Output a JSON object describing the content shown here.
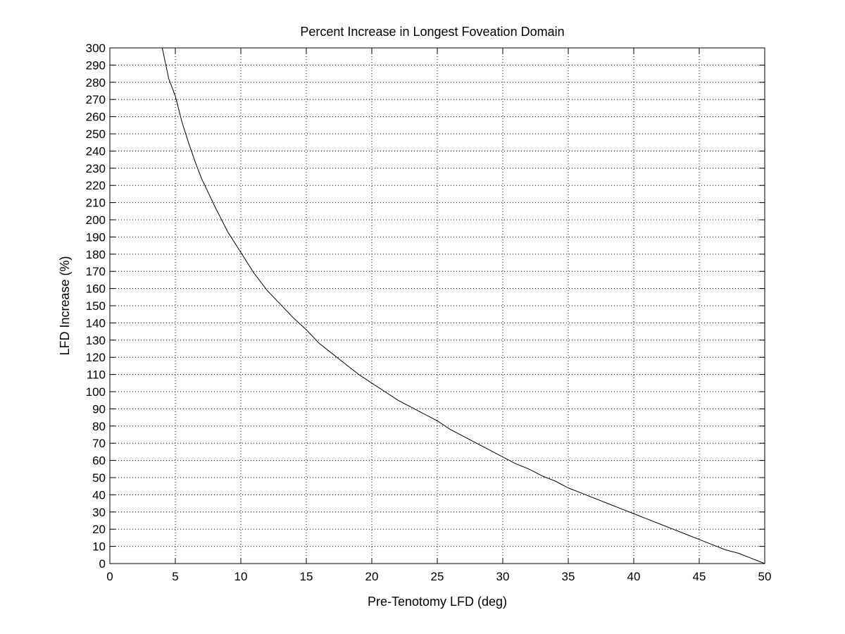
{
  "chart_data": {
    "type": "line",
    "title": "Percent Increase in Longest Foveation Domain",
    "xlabel": "Pre-Tenotomy LFD (deg)",
    "ylabel": "LFD Increase (%)",
    "xlim": [
      0,
      50
    ],
    "ylim": [
      0,
      300
    ],
    "x_ticks": [
      0,
      5,
      10,
      15,
      20,
      25,
      30,
      35,
      40,
      45,
      50
    ],
    "y_ticks": [
      0,
      10,
      20,
      30,
      40,
      50,
      60,
      70,
      80,
      90,
      100,
      110,
      120,
      130,
      140,
      150,
      160,
      170,
      180,
      190,
      200,
      210,
      220,
      230,
      240,
      250,
      260,
      270,
      280,
      290,
      300
    ],
    "grid": true,
    "series": [
      {
        "color": "#000000",
        "x": [
          4.0,
          4.5,
          5,
          5.5,
          6,
          6.5,
          7,
          8,
          9,
          10,
          11,
          12,
          13,
          14,
          15,
          16,
          17,
          18,
          19,
          20,
          21,
          22,
          23,
          24,
          25,
          26,
          27,
          28,
          29,
          30,
          31,
          32,
          33,
          34,
          35,
          36,
          37,
          38,
          39,
          40,
          41,
          42,
          43,
          44,
          45,
          46,
          47,
          48,
          49,
          50
        ],
        "values": [
          300,
          282,
          272,
          257,
          245,
          234,
          224,
          208,
          193,
          181,
          169,
          159,
          151,
          143,
          136,
          128,
          122,
          116,
          110,
          105,
          100,
          95,
          91,
          87,
          83,
          78,
          74,
          70,
          66,
          62,
          58,
          55,
          51,
          48,
          44,
          41,
          38,
          35,
          32,
          29,
          26,
          23,
          20,
          17,
          14,
          11,
          8,
          6,
          3,
          0
        ]
      }
    ]
  }
}
